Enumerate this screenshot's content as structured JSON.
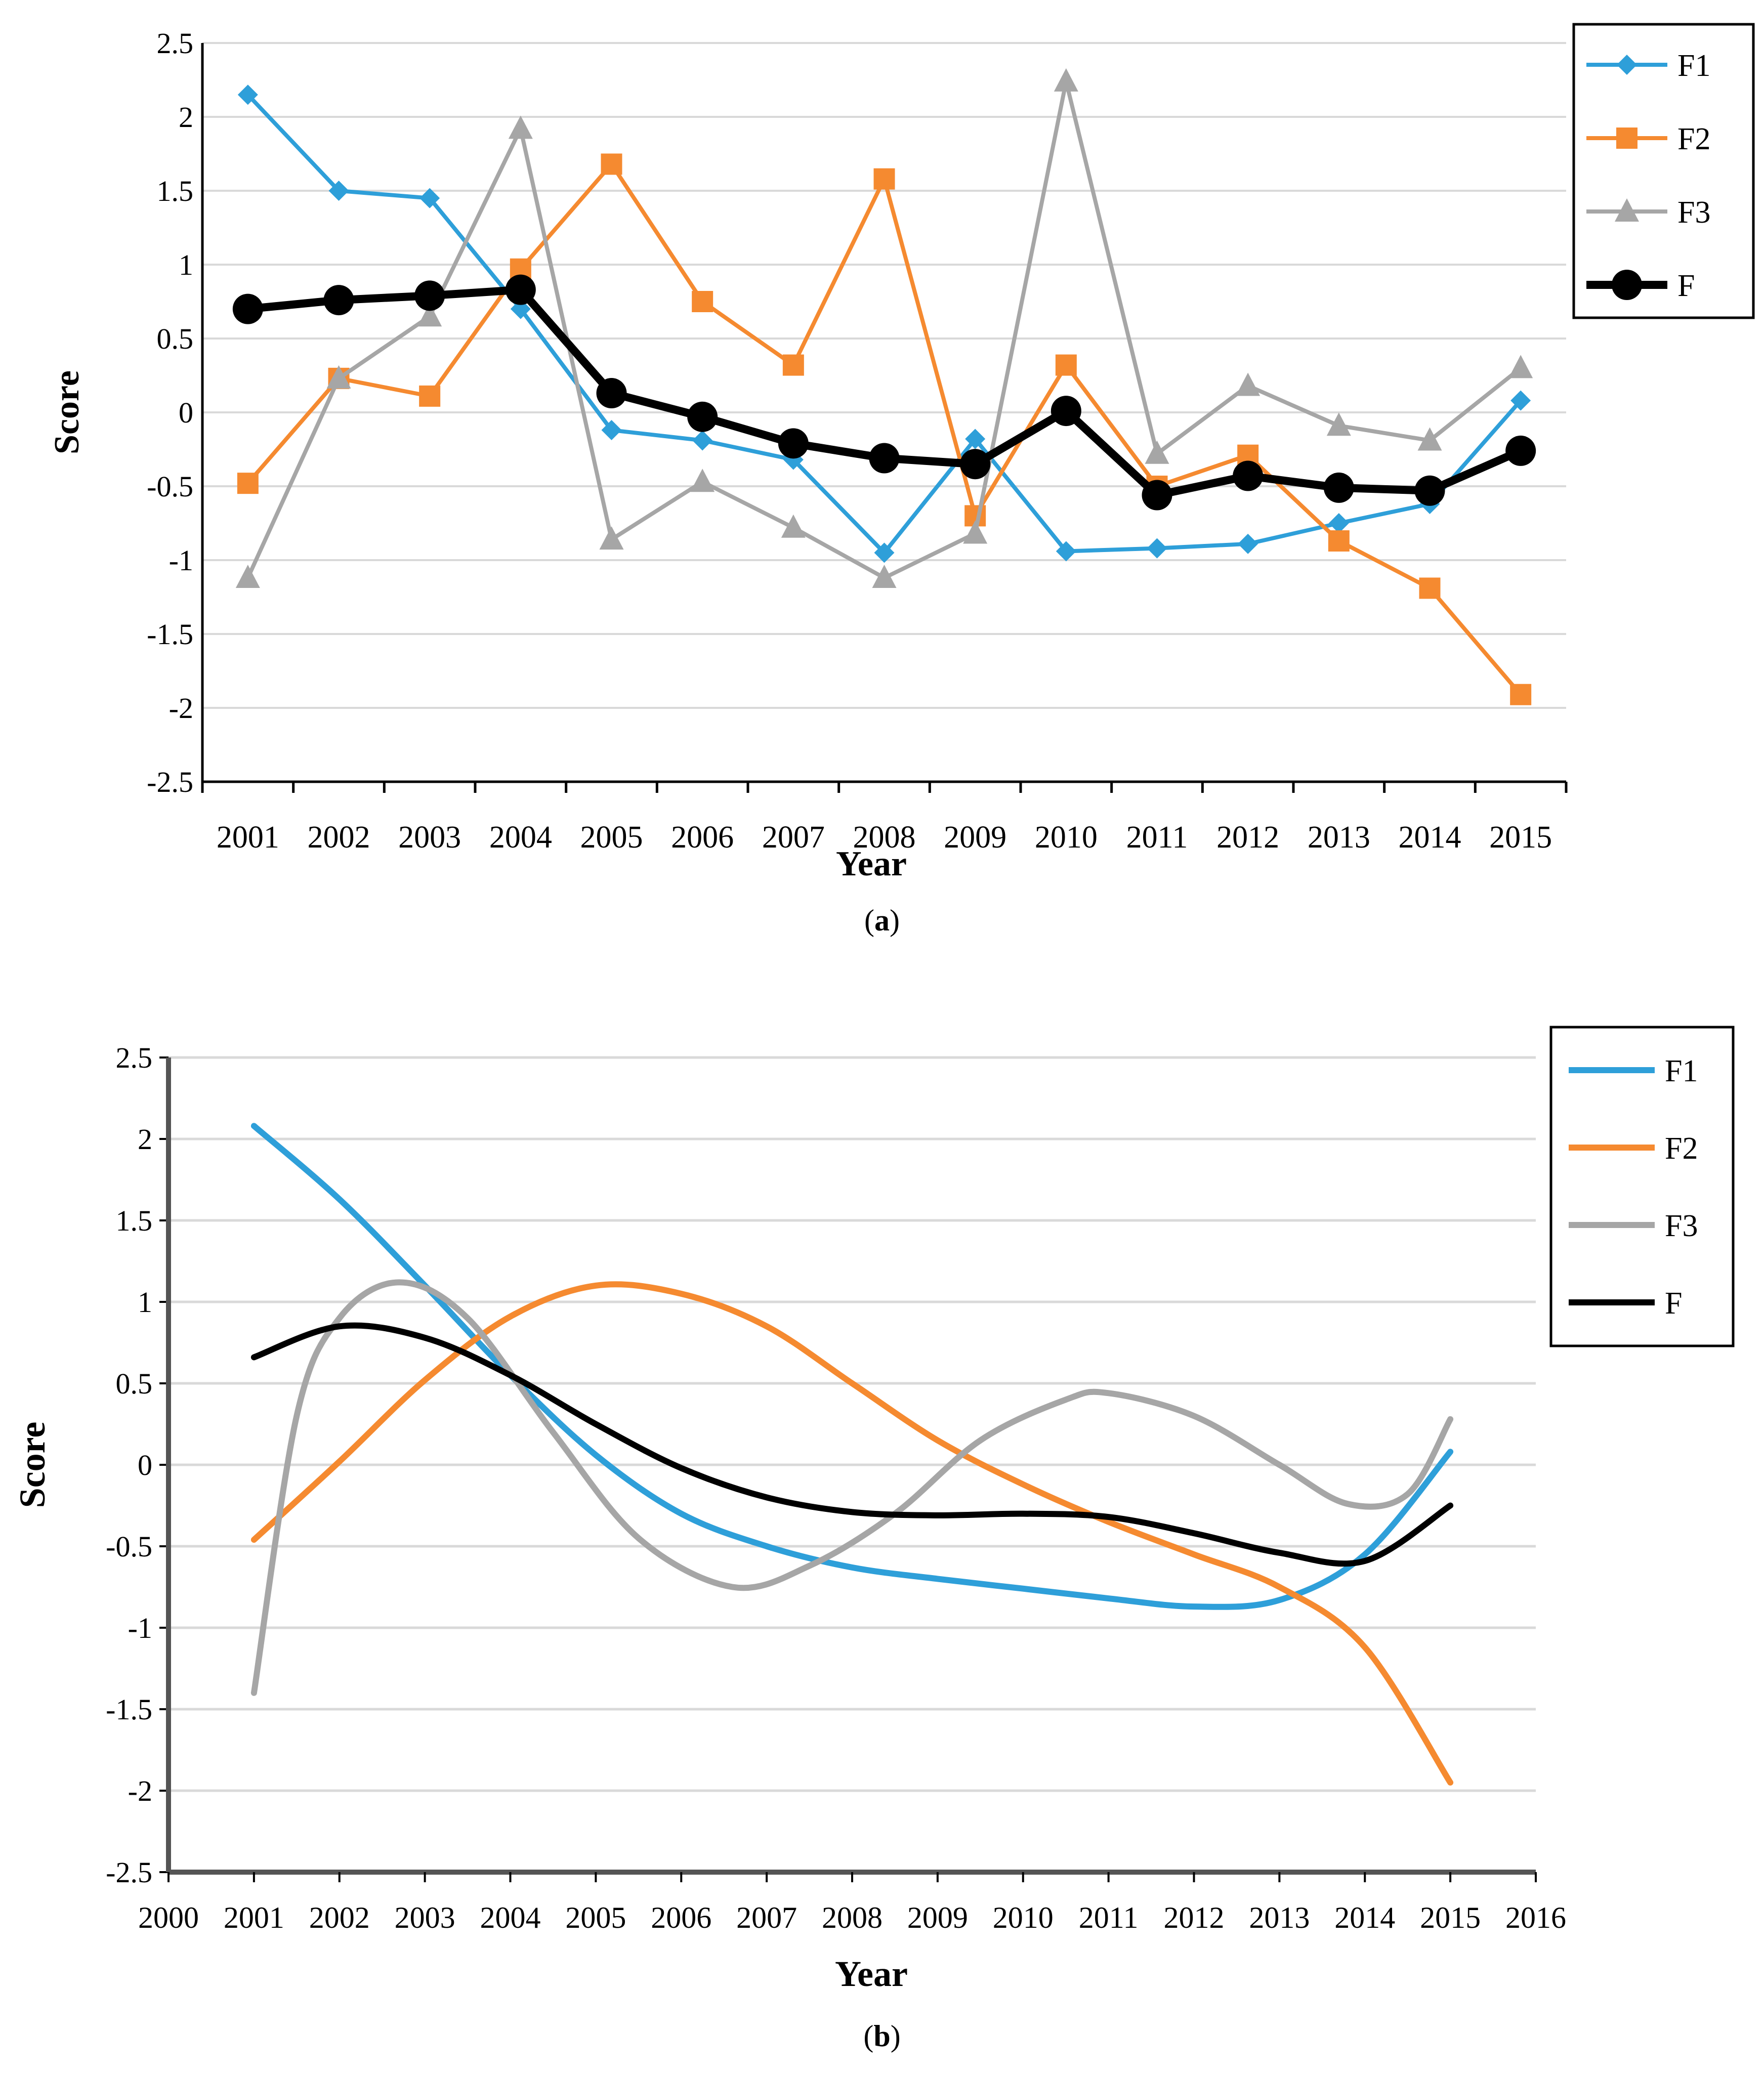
{
  "colors": {
    "F1": "#2e9fd9",
    "F2": "#f58a30",
    "F3": "#a6a6a6",
    "F": "#000000",
    "grid": "#d9d9d9"
  },
  "chart_data": [
    {
      "id": "a",
      "type": "line",
      "caption_letter": "a",
      "xlabel": "Year",
      "ylabel": "Score",
      "ylim": [
        -2.5,
        2.5
      ],
      "ystep": 0.5,
      "yticks": [
        "2.5",
        "2",
        "1.5",
        "1",
        "0.5",
        "0",
        "-0.5",
        "-1",
        "-1.5",
        "-2",
        "-2.5"
      ],
      "categories": [
        "2001",
        "2002",
        "2003",
        "2004",
        "2005",
        "2006",
        "2007",
        "2008",
        "2009",
        "2010",
        "2011",
        "2012",
        "2013",
        "2014",
        "2015"
      ],
      "legend_position": "top-right",
      "series": [
        {
          "name": "F1",
          "marker": "diamond",
          "values": [
            2.15,
            1.5,
            1.45,
            0.7,
            -0.12,
            -0.19,
            -0.32,
            -0.95,
            -0.18,
            -0.94,
            -0.92,
            -0.89,
            -0.75,
            -0.62,
            0.08
          ]
        },
        {
          "name": "F2",
          "marker": "square",
          "values": [
            -0.48,
            0.23,
            0.11,
            0.97,
            1.68,
            0.75,
            0.32,
            1.58,
            -0.7,
            0.32,
            -0.5,
            -0.29,
            -0.87,
            -1.19,
            -1.91
          ]
        },
        {
          "name": "F3",
          "marker": "triangle",
          "values": [
            -1.12,
            0.23,
            0.65,
            1.92,
            -0.86,
            -0.47,
            -0.78,
            -1.12,
            -0.82,
            2.24,
            -0.28,
            0.18,
            -0.09,
            -0.19,
            0.3
          ]
        },
        {
          "name": "F",
          "marker": "circle",
          "values": [
            0.7,
            0.76,
            0.79,
            0.83,
            0.13,
            -0.03,
            -0.21,
            -0.31,
            -0.35,
            0.01,
            -0.56,
            -0.43,
            -0.51,
            -0.53,
            -0.26
          ]
        }
      ]
    },
    {
      "id": "b",
      "type": "line",
      "caption_letter": "b",
      "xlabel": "Year",
      "ylabel": "Score",
      "ylim": [
        -2.5,
        2.5
      ],
      "ystep": 0.5,
      "yticks": [
        "2.5",
        "2",
        "1.5",
        "1",
        "0.5",
        "0",
        "-0.5",
        "-1",
        "-1.5",
        "-2",
        "-2.5"
      ],
      "xlim": [
        2000,
        2016
      ],
      "xticks": [
        "2000",
        "2001",
        "2002",
        "2003",
        "2004",
        "2005",
        "2006",
        "2007",
        "2008",
        "2009",
        "2010",
        "2011",
        "2012",
        "2013",
        "2014",
        "2015",
        "2016"
      ],
      "legend_position": "top-right",
      "smooth": true,
      "series": [
        {
          "name": "F1",
          "x": [
            2001,
            2002,
            2003,
            2004,
            2005,
            2006,
            2007,
            2008,
            2009,
            2010,
            2011,
            2012,
            2013,
            2014,
            2015
          ],
          "values": [
            2.08,
            1.63,
            1.1,
            0.55,
            0.06,
            -0.3,
            -0.5,
            -0.63,
            -0.7,
            -0.76,
            -0.82,
            -0.87,
            -0.83,
            -0.55,
            0.08
          ]
        },
        {
          "name": "F2",
          "x": [
            2001,
            2002,
            2003,
            2004,
            2005,
            2006,
            2007,
            2008,
            2009,
            2010,
            2011,
            2012,
            2013,
            2014,
            2015
          ],
          "values": [
            -0.46,
            0.02,
            0.52,
            0.91,
            1.1,
            1.05,
            0.85,
            0.5,
            0.15,
            -0.12,
            -0.35,
            -0.55,
            -0.75,
            -1.12,
            -1.95
          ]
        },
        {
          "name": "F3",
          "x": [
            2001,
            2001.5,
            2002,
            2002.7,
            2003.5,
            2004.5,
            2005.5,
            2006.6,
            2007.5,
            2008.5,
            2009.5,
            2010.5,
            2011,
            2012,
            2013,
            2013.8,
            2014.5,
            2015
          ],
          "values": [
            -1.4,
            0.3,
            0.9,
            1.12,
            0.9,
            0.2,
            -0.45,
            -0.75,
            -0.62,
            -0.3,
            0.15,
            0.4,
            0.44,
            0.3,
            0.0,
            -0.24,
            -0.18,
            0.28
          ]
        },
        {
          "name": "F",
          "x": [
            2001,
            2002,
            2003,
            2004,
            2005,
            2006,
            2007,
            2008,
            2009,
            2010,
            2011,
            2012,
            2013,
            2014,
            2015
          ],
          "values": [
            0.66,
            0.85,
            0.78,
            0.55,
            0.25,
            -0.02,
            -0.2,
            -0.29,
            -0.31,
            -0.3,
            -0.32,
            -0.42,
            -0.54,
            -0.59,
            -0.25
          ]
        }
      ]
    }
  ]
}
